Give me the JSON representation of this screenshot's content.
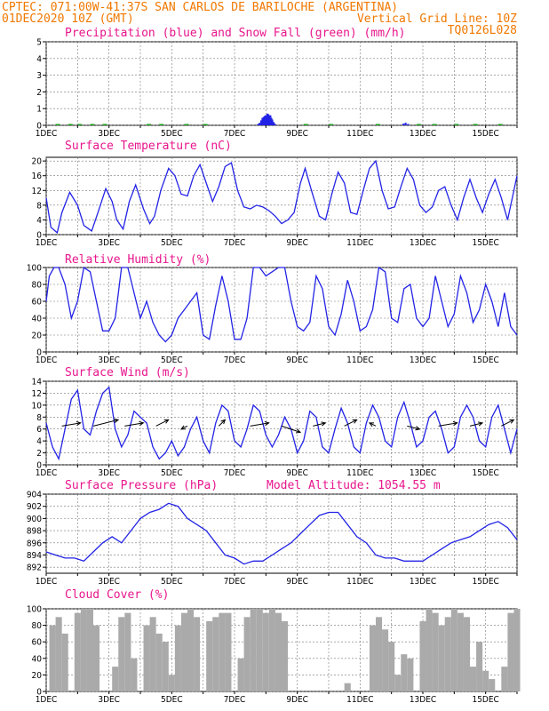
{
  "header": {
    "line1": "CPTEC:  071:00W-41:37S  SAN CARLOS DE BARILOCHE (ARGENTINA)",
    "line2_left": "01DEC2020 10Z (GMT)",
    "line2_right": "Vertical Grid Line: 10Z",
    "line3_right": "TQ0126L028"
  },
  "colors": {
    "header": "#f07800",
    "title": "#e8158c",
    "line": "#2323e6",
    "snow": "#1ea01e",
    "cloud": "#aaaaaa"
  },
  "chart_data": [
    {
      "id": "precip",
      "type": "bar",
      "title": "Precipitation (blue) and Snow Fall (green) (mm/h)",
      "ylim": [
        0,
        5
      ],
      "yticks": [
        0,
        1,
        2,
        3,
        4,
        5
      ],
      "xticks": [
        "1DEC",
        "3DEC",
        "5DEC",
        "7DEC",
        "9DEC",
        "11DEC",
        "13DEC",
        "15DEC"
      ],
      "xlim_days": [
        0,
        15
      ],
      "series": [
        {
          "name": "Precipitation",
          "x": [
            6.72,
            6.77,
            6.82,
            6.86,
            6.9,
            6.93,
            6.96,
            6.99,
            7.02,
            7.05,
            7.08,
            7.11,
            7.14,
            7.17,
            7.21,
            7.25,
            11.35,
            11.42,
            11.5
          ],
          "values": [
            0.08,
            0.15,
            0.3,
            0.45,
            0.5,
            0.55,
            0.6,
            0.55,
            0.7,
            0.65,
            0.55,
            0.6,
            0.45,
            0.35,
            0.2,
            0.1,
            0.1,
            0.15,
            0.08
          ]
        },
        {
          "name": "Snow Fall",
          "x": [
            0.3,
            0.7,
            1.0,
            1.4,
            1.8,
            3.2,
            3.6,
            4.4,
            5.0,
            8.2,
            9.0,
            10.5,
            11.8,
            12.3,
            13.0,
            13.6,
            14.4
          ],
          "values": [
            0.06,
            0.06,
            0.05,
            0.06,
            0.05,
            0.05,
            0.06,
            0.05,
            0.05,
            0.05,
            0.06,
            0.05,
            0.05,
            0.06,
            0.05,
            0.06,
            0.05
          ]
        }
      ]
    },
    {
      "id": "temp",
      "type": "line",
      "title": "Surface Temperature (nC)",
      "ylim": [
        0,
        21
      ],
      "yticks": [
        0,
        4,
        8,
        12,
        16,
        20
      ],
      "xticks": [
        "1DEC",
        "3DEC",
        "5DEC",
        "7DEC",
        "9DEC",
        "11DEC",
        "13DEC",
        "15DEC"
      ],
      "xlim_days": [
        0,
        15
      ],
      "x": [
        0,
        0.15,
        0.35,
        0.5,
        0.75,
        1.0,
        1.2,
        1.45,
        1.65,
        1.9,
        2.1,
        2.25,
        2.45,
        2.65,
        2.85,
        3.1,
        3.3,
        3.45,
        3.65,
        3.9,
        4.1,
        4.3,
        4.5,
        4.7,
        4.9,
        5.1,
        5.3,
        5.5,
        5.7,
        5.9,
        6.1,
        6.3,
        6.5,
        6.7,
        6.9,
        7.1,
        7.3,
        7.5,
        7.7,
        7.9,
        8.1,
        8.25,
        8.45,
        8.7,
        8.9,
        9.1,
        9.3,
        9.5,
        9.7,
        9.9,
        10.1,
        10.3,
        10.5,
        10.7,
        10.9,
        11.1,
        11.3,
        11.5,
        11.7,
        11.9,
        12.1,
        12.3,
        12.5,
        12.7,
        12.9,
        13.1,
        13.3,
        13.5,
        13.7,
        13.9,
        14.1,
        14.3,
        14.5,
        14.7,
        14.9,
        15.0
      ],
      "values": [
        10,
        2,
        0.5,
        6,
        11.5,
        8,
        2.5,
        1,
        6,
        12.5,
        9,
        4,
        1.5,
        9,
        13.5,
        7,
        3,
        5,
        12,
        18,
        16,
        11,
        10.5,
        16,
        19,
        14,
        9,
        13,
        18.5,
        19.5,
        12,
        7.5,
        7,
        8,
        7.5,
        6.5,
        5,
        3,
        4,
        6,
        14,
        18,
        12,
        5,
        4,
        11,
        17,
        14,
        6,
        5.5,
        12,
        18,
        20,
        12,
        7,
        7.5,
        13,
        18,
        15,
        8,
        6,
        7.5,
        12,
        13,
        8,
        4,
        10,
        15,
        10,
        6,
        11,
        15,
        10,
        4,
        12,
        16
      ]
    },
    {
      "id": "rh",
      "type": "line",
      "title": "Relative Humidity (%)",
      "ylim": [
        0,
        100
      ],
      "yticks": [
        0,
        20,
        40,
        60,
        80,
        100
      ],
      "xticks": [
        "1DEC",
        "3DEC",
        "5DEC",
        "7DEC",
        "9DEC",
        "11DEC",
        "13DEC",
        "15DEC"
      ],
      "xlim_days": [
        0,
        15
      ],
      "x": [
        0,
        0.1,
        0.25,
        0.4,
        0.6,
        0.8,
        1.0,
        1.2,
        1.4,
        1.6,
        1.8,
        2.0,
        2.2,
        2.4,
        2.6,
        2.8,
        3.0,
        3.2,
        3.4,
        3.6,
        3.8,
        4.0,
        4.2,
        4.4,
        4.6,
        4.8,
        5.0,
        5.2,
        5.4,
        5.6,
        5.8,
        6.0,
        6.2,
        6.4,
        6.6,
        6.8,
        7.0,
        7.2,
        7.4,
        7.6,
        7.8,
        8.0,
        8.2,
        8.4,
        8.6,
        8.8,
        9.0,
        9.2,
        9.4,
        9.6,
        9.8,
        10.0,
        10.2,
        10.4,
        10.6,
        10.8,
        11.0,
        11.2,
        11.4,
        11.6,
        11.8,
        12.0,
        12.2,
        12.4,
        12.6,
        12.8,
        13.0,
        13.2,
        13.4,
        13.6,
        13.8,
        14.0,
        14.2,
        14.4,
        14.6,
        14.8,
        15.0
      ],
      "values": [
        60,
        90,
        100,
        100,
        80,
        40,
        60,
        100,
        95,
        60,
        25,
        25,
        40,
        100,
        100,
        70,
        40,
        60,
        35,
        20,
        12,
        20,
        40,
        50,
        60,
        70,
        20,
        15,
        55,
        90,
        60,
        15,
        15,
        40,
        100,
        100,
        90,
        95,
        100,
        100,
        60,
        30,
        25,
        35,
        90,
        75,
        30,
        20,
        45,
        85,
        60,
        25,
        30,
        50,
        100,
        95,
        40,
        35,
        75,
        80,
        40,
        30,
        40,
        90,
        60,
        30,
        45,
        90,
        70,
        35,
        50,
        80,
        60,
        30,
        70,
        30,
        20
      ]
    },
    {
      "id": "wind",
      "type": "line",
      "title": "Surface Wind (m/s)",
      "ylim": [
        0,
        14
      ],
      "yticks": [
        0,
        2,
        4,
        6,
        8,
        10,
        12,
        14
      ],
      "xticks": [
        "1DEC",
        "3DEC",
        "5DEC",
        "7DEC",
        "9DEC",
        "11DEC",
        "13DEC",
        "15DEC"
      ],
      "xlim_days": [
        0,
        15
      ],
      "x": [
        0,
        0.2,
        0.4,
        0.6,
        0.8,
        1.0,
        1.2,
        1.4,
        1.6,
        1.8,
        2.0,
        2.2,
        2.4,
        2.6,
        2.8,
        3.0,
        3.2,
        3.4,
        3.6,
        3.8,
        4.0,
        4.2,
        4.4,
        4.6,
        4.8,
        5.0,
        5.2,
        5.4,
        5.6,
        5.8,
        6.0,
        6.2,
        6.4,
        6.6,
        6.8,
        7.0,
        7.2,
        7.4,
        7.6,
        7.8,
        8.0,
        8.2,
        8.4,
        8.6,
        8.8,
        9.0,
        9.2,
        9.4,
        9.6,
        9.8,
        10.0,
        10.2,
        10.4,
        10.6,
        10.8,
        11.0,
        11.2,
        11.4,
        11.6,
        11.8,
        12.0,
        12.2,
        12.4,
        12.6,
        12.8,
        13.0,
        13.2,
        13.4,
        13.6,
        13.8,
        14.0,
        14.2,
        14.4,
        14.6,
        14.8,
        15.0
      ],
      "values": [
        7,
        3,
        1,
        6,
        11,
        12.5,
        6,
        5,
        9,
        12,
        13,
        6,
        3,
        5,
        9,
        8,
        7,
        3,
        1,
        2,
        4,
        1.5,
        3,
        6,
        8,
        4,
        2,
        7,
        10,
        9,
        4,
        3,
        6,
        10,
        9,
        5,
        3,
        5,
        8,
        6,
        2,
        4,
        9,
        8,
        3,
        2,
        6,
        9.5,
        7,
        3,
        2,
        7,
        10,
        8,
        4,
        3,
        8,
        10.5,
        7,
        3,
        4,
        8,
        9,
        6,
        2,
        3,
        8,
        10,
        8,
        4,
        3,
        8,
        10,
        6,
        2,
        6
      ],
      "vectors": {
        "x": [
          0.5,
          1.5,
          2.5,
          3.5,
          4.5,
          5.5,
          6.5,
          7.5,
          8.5,
          9.5,
          10.5,
          11.5,
          12.5,
          13.5,
          14.5
        ],
        "u": [
          3,
          4,
          3,
          2,
          -1,
          1,
          3,
          3,
          2,
          2,
          -1,
          2,
          3,
          2,
          2
        ],
        "v": [
          1,
          2,
          1,
          2,
          -1,
          2,
          1,
          -2,
          1,
          2,
          1,
          -1,
          1,
          1,
          2
        ]
      }
    },
    {
      "id": "pressure",
      "type": "line",
      "title": "Surface Pressure (hPa)",
      "annotation": "Model Altitude: 1054.55  m",
      "ylim": [
        891,
        904
      ],
      "yticks": [
        892,
        894,
        896,
        898,
        900,
        902,
        904
      ],
      "xticks": [
        "1DEC",
        "3DEC",
        "5DEC",
        "7DEC",
        "9DEC",
        "11DEC",
        "13DEC",
        "15DEC"
      ],
      "xlim_days": [
        0,
        15
      ],
      "x": [
        0,
        0.3,
        0.6,
        0.9,
        1.2,
        1.5,
        1.8,
        2.1,
        2.4,
        2.7,
        3.0,
        3.3,
        3.6,
        3.9,
        4.2,
        4.5,
        4.8,
        5.1,
        5.4,
        5.7,
        6.0,
        6.3,
        6.6,
        6.9,
        7.2,
        7.5,
        7.8,
        8.1,
        8.4,
        8.7,
        9.0,
        9.3,
        9.6,
        9.9,
        10.2,
        10.5,
        10.8,
        11.1,
        11.4,
        11.7,
        12.0,
        12.3,
        12.6,
        12.9,
        13.2,
        13.5,
        13.8,
        14.1,
        14.4,
        14.7,
        15.0
      ],
      "values": [
        894.5,
        894,
        893.5,
        893.5,
        893,
        894.5,
        896,
        897,
        896,
        898,
        900,
        901,
        901.5,
        902.5,
        902,
        900,
        899,
        898,
        896,
        894,
        893.5,
        892.5,
        893,
        893,
        894,
        895,
        896,
        897.5,
        899,
        900.5,
        901,
        901,
        899,
        897,
        896,
        894,
        893.5,
        893.5,
        893,
        893,
        893,
        894,
        895,
        896,
        896.5,
        897,
        898,
        899,
        899.5,
        898.5,
        896.5
      ]
    },
    {
      "id": "cloud",
      "type": "area",
      "title": "Cloud Cover (%)",
      "ylim": [
        0,
        100
      ],
      "yticks": [
        0,
        20,
        40,
        60,
        80,
        100
      ],
      "xticks": [
        "1DEC",
        "3DEC",
        "5DEC",
        "7DEC",
        "9DEC",
        "11DEC",
        "13DEC",
        "15DEC"
      ],
      "xlim_days": [
        0,
        15
      ],
      "x": [
        0,
        0.2,
        0.4,
        0.6,
        0.8,
        1.0,
        1.2,
        1.4,
        1.6,
        1.8,
        2.0,
        2.2,
        2.4,
        2.6,
        2.8,
        3.0,
        3.2,
        3.4,
        3.6,
        3.8,
        4.0,
        4.2,
        4.4,
        4.6,
        4.8,
        5.0,
        5.2,
        5.4,
        5.6,
        5.8,
        6.0,
        6.2,
        6.4,
        6.6,
        6.8,
        7.0,
        7.2,
        7.4,
        7.6,
        7.8,
        8.0,
        8.2,
        8.4,
        8.6,
        8.8,
        9.0,
        9.2,
        9.4,
        9.6,
        9.8,
        10.0,
        10.2,
        10.4,
        10.6,
        10.8,
        11.0,
        11.2,
        11.4,
        11.6,
        11.8,
        12.0,
        12.2,
        12.4,
        12.6,
        12.8,
        13.0,
        13.2,
        13.4,
        13.6,
        13.8,
        14.0,
        14.2,
        14.4,
        14.6,
        14.8,
        15.0
      ],
      "values": [
        0,
        80,
        90,
        70,
        0,
        95,
        100,
        100,
        80,
        0,
        0,
        30,
        90,
        95,
        40,
        0,
        80,
        90,
        70,
        60,
        20,
        80,
        95,
        100,
        90,
        0,
        85,
        90,
        95,
        95,
        0,
        40,
        90,
        100,
        100,
        95,
        100,
        95,
        85,
        0,
        0,
        0,
        0,
        0,
        0,
        0,
        0,
        0,
        10,
        0,
        0,
        0,
        80,
        90,
        75,
        60,
        20,
        45,
        40,
        0,
        85,
        100,
        95,
        80,
        90,
        100,
        95,
        90,
        30,
        60,
        25,
        15,
        0,
        30,
        95,
        100
      ]
    }
  ]
}
